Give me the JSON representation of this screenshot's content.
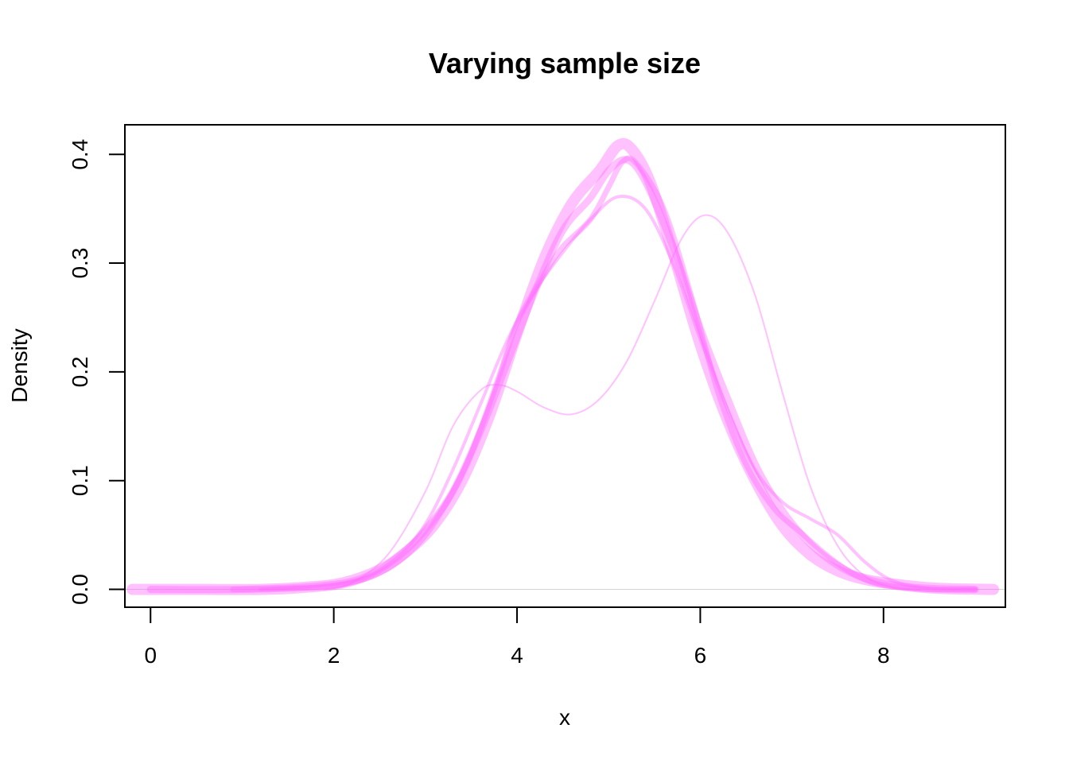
{
  "chart_data": {
    "type": "line",
    "title": "Varying sample size",
    "xlabel": "x",
    "ylabel": "Density",
    "xlim": [
      -0.28,
      9.33
    ],
    "ylim": [
      -0.0164,
      0.4272
    ],
    "xticks": [
      0,
      2,
      4,
      6,
      8
    ],
    "yticks": [
      0.0,
      0.1,
      0.2,
      0.3,
      0.4
    ],
    "xtick_labels": [
      "0",
      "2",
      "4",
      "6",
      "8"
    ],
    "ytick_labels": [
      "0.0",
      "0.1",
      "0.2",
      "0.3",
      "0.4"
    ],
    "grid": false,
    "baseline": {
      "y": 0,
      "color": "#d3d3d3"
    },
    "color": "#ff66ff",
    "opacity": 0.4,
    "series": [
      {
        "line_width": 2,
        "points": [
          [
            1.9,
            0.0
          ],
          [
            2.2,
            0.006
          ],
          [
            2.6,
            0.033
          ],
          [
            3.0,
            0.09
          ],
          [
            3.3,
            0.15
          ],
          [
            3.6,
            0.183
          ],
          [
            3.8,
            0.188
          ],
          [
            4.0,
            0.182
          ],
          [
            4.3,
            0.167
          ],
          [
            4.6,
            0.161
          ],
          [
            4.9,
            0.175
          ],
          [
            5.2,
            0.21
          ],
          [
            5.5,
            0.265
          ],
          [
            5.8,
            0.323
          ],
          [
            6.05,
            0.344
          ],
          [
            6.3,
            0.328
          ],
          [
            6.6,
            0.27
          ],
          [
            6.9,
            0.18
          ],
          [
            7.2,
            0.095
          ],
          [
            7.5,
            0.04
          ],
          [
            7.8,
            0.012
          ],
          [
            8.1,
            0.002
          ],
          [
            8.4,
            0.0
          ]
        ]
      },
      {
        "line_width": 4,
        "points": [
          [
            1.2,
            0.0
          ],
          [
            1.8,
            0.003
          ],
          [
            2.3,
            0.01
          ],
          [
            2.7,
            0.03
          ],
          [
            3.0,
            0.06
          ],
          [
            3.3,
            0.11
          ],
          [
            3.6,
            0.17
          ],
          [
            3.9,
            0.23
          ],
          [
            4.2,
            0.275
          ],
          [
            4.5,
            0.31
          ],
          [
            4.8,
            0.34
          ],
          [
            5.1,
            0.361
          ],
          [
            5.4,
            0.35
          ],
          [
            5.7,
            0.3
          ],
          [
            6.0,
            0.23
          ],
          [
            6.3,
            0.165
          ],
          [
            6.6,
            0.11
          ],
          [
            6.9,
            0.08
          ],
          [
            7.2,
            0.065
          ],
          [
            7.5,
            0.05
          ],
          [
            7.8,
            0.025
          ],
          [
            8.1,
            0.008
          ],
          [
            8.5,
            0.001
          ],
          [
            9.0,
            0.0
          ]
        ]
      },
      {
        "line_width": 7,
        "points": [
          [
            0.9,
            0.0
          ],
          [
            1.5,
            0.001
          ],
          [
            2.0,
            0.003
          ],
          [
            2.5,
            0.015
          ],
          [
            2.9,
            0.04
          ],
          [
            3.2,
            0.075
          ],
          [
            3.5,
            0.125
          ],
          [
            3.8,
            0.195
          ],
          [
            4.0,
            0.245
          ],
          [
            4.3,
            0.29
          ],
          [
            4.5,
            0.315
          ],
          [
            4.8,
            0.34
          ],
          [
            5.0,
            0.37
          ],
          [
            5.15,
            0.393
          ],
          [
            5.3,
            0.392
          ],
          [
            5.6,
            0.35
          ],
          [
            5.9,
            0.27
          ],
          [
            6.2,
            0.18
          ],
          [
            6.5,
            0.115
          ],
          [
            6.8,
            0.075
          ],
          [
            7.1,
            0.052
          ],
          [
            7.4,
            0.03
          ],
          [
            7.7,
            0.013
          ],
          [
            8.0,
            0.004
          ],
          [
            8.5,
            0.0
          ],
          [
            9.0,
            0.0
          ]
        ]
      },
      {
        "line_width": 9,
        "points": [
          [
            0.0,
            0.0
          ],
          [
            1.0,
            0.0
          ],
          [
            1.8,
            0.003
          ],
          [
            2.3,
            0.01
          ],
          [
            2.7,
            0.03
          ],
          [
            3.0,
            0.055
          ],
          [
            3.3,
            0.09
          ],
          [
            3.6,
            0.145
          ],
          [
            3.9,
            0.21
          ],
          [
            4.2,
            0.275
          ],
          [
            4.5,
            0.33
          ],
          [
            4.8,
            0.36
          ],
          [
            5.0,
            0.385
          ],
          [
            5.2,
            0.395
          ],
          [
            5.4,
            0.375
          ],
          [
            5.7,
            0.315
          ],
          [
            6.0,
            0.24
          ],
          [
            6.3,
            0.175
          ],
          [
            6.6,
            0.115
          ],
          [
            6.9,
            0.072
          ],
          [
            7.2,
            0.042
          ],
          [
            7.5,
            0.022
          ],
          [
            7.8,
            0.01
          ],
          [
            8.1,
            0.004
          ],
          [
            8.5,
            0.001
          ],
          [
            9.0,
            0.0
          ]
        ]
      },
      {
        "line_width": 14,
        "points": [
          [
            -0.2,
            0.0
          ],
          [
            0.5,
            0.0
          ],
          [
            1.2,
            0.0
          ],
          [
            1.7,
            0.002
          ],
          [
            2.1,
            0.006
          ],
          [
            2.5,
            0.018
          ],
          [
            2.8,
            0.035
          ],
          [
            3.1,
            0.06
          ],
          [
            3.4,
            0.1
          ],
          [
            3.7,
            0.16
          ],
          [
            4.0,
            0.235
          ],
          [
            4.3,
            0.305
          ],
          [
            4.6,
            0.355
          ],
          [
            4.9,
            0.385
          ],
          [
            5.1,
            0.408
          ],
          [
            5.25,
            0.405
          ],
          [
            5.45,
            0.375
          ],
          [
            5.7,
            0.31
          ],
          [
            6.0,
            0.225
          ],
          [
            6.3,
            0.155
          ],
          [
            6.6,
            0.1
          ],
          [
            6.9,
            0.058
          ],
          [
            7.2,
            0.032
          ],
          [
            7.5,
            0.017
          ],
          [
            7.8,
            0.009
          ],
          [
            8.2,
            0.004
          ],
          [
            8.6,
            0.001
          ],
          [
            9.2,
            0.0
          ]
        ]
      }
    ]
  }
}
